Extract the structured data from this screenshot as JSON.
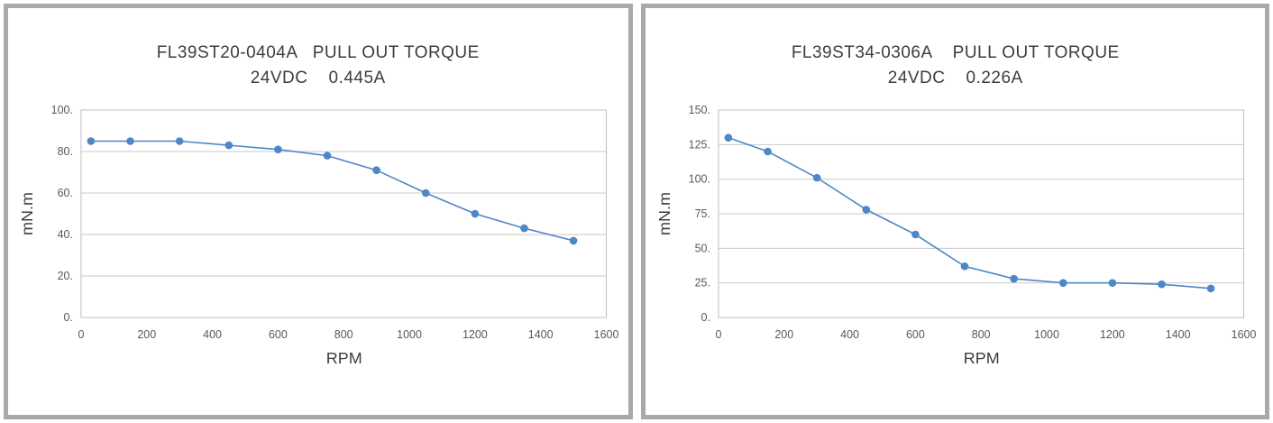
{
  "theme": {
    "background": "#ffffff",
    "panel_border": "#a9a9a9",
    "accent_blue": "#4e86c6",
    "gridline": "#c9c9c9",
    "plot_border": "#bfbfbf",
    "title_text": "#3d3d3d",
    "tick_text": "#595959"
  },
  "chart_data": [
    {
      "type": "line",
      "title_line1": "FL39ST20-0404A   PULL OUT TORQUE",
      "title_line2": "24VDC    0.445A",
      "xlabel": "RPM",
      "ylabel": "mN.m",
      "series_name": "pull-out-torque",
      "x": [
        30,
        150,
        300,
        450,
        600,
        750,
        900,
        1050,
        1200,
        1350,
        1500
      ],
      "values": [
        85,
        85,
        85,
        83,
        81,
        78,
        71,
        60,
        50,
        43,
        37
      ],
      "xlim": [
        0,
        1600
      ],
      "ylim": [
        0,
        100
      ],
      "x_ticks": [
        0,
        200,
        400,
        600,
        800,
        1000,
        1200,
        1400,
        1600
      ],
      "y_ticks": [
        0,
        20,
        40,
        60,
        80,
        100
      ],
      "y_tick_suffix": ".",
      "grid": "horizontal",
      "legend": "none",
      "marker": "circle"
    },
    {
      "type": "line",
      "title_line1": "FL39ST34-0306A    PULL OUT TORQUE",
      "title_line2": "24VDC    0.226A",
      "xlabel": "RPM",
      "ylabel": "mN.m",
      "series_name": "pull-out-torque",
      "x": [
        30,
        150,
        300,
        450,
        600,
        750,
        900,
        1050,
        1200,
        1350,
        1500
      ],
      "values": [
        130,
        120,
        101,
        78,
        60,
        37,
        28,
        25,
        25,
        24,
        21
      ],
      "xlim": [
        0,
        1600
      ],
      "ylim": [
        0,
        150
      ],
      "x_ticks": [
        0,
        200,
        400,
        600,
        800,
        1000,
        1200,
        1400,
        1600
      ],
      "y_ticks": [
        0,
        25,
        50,
        75,
        100,
        125,
        150
      ],
      "y_tick_suffix": ".",
      "grid": "horizontal",
      "legend": "none",
      "marker": "circle"
    }
  ]
}
